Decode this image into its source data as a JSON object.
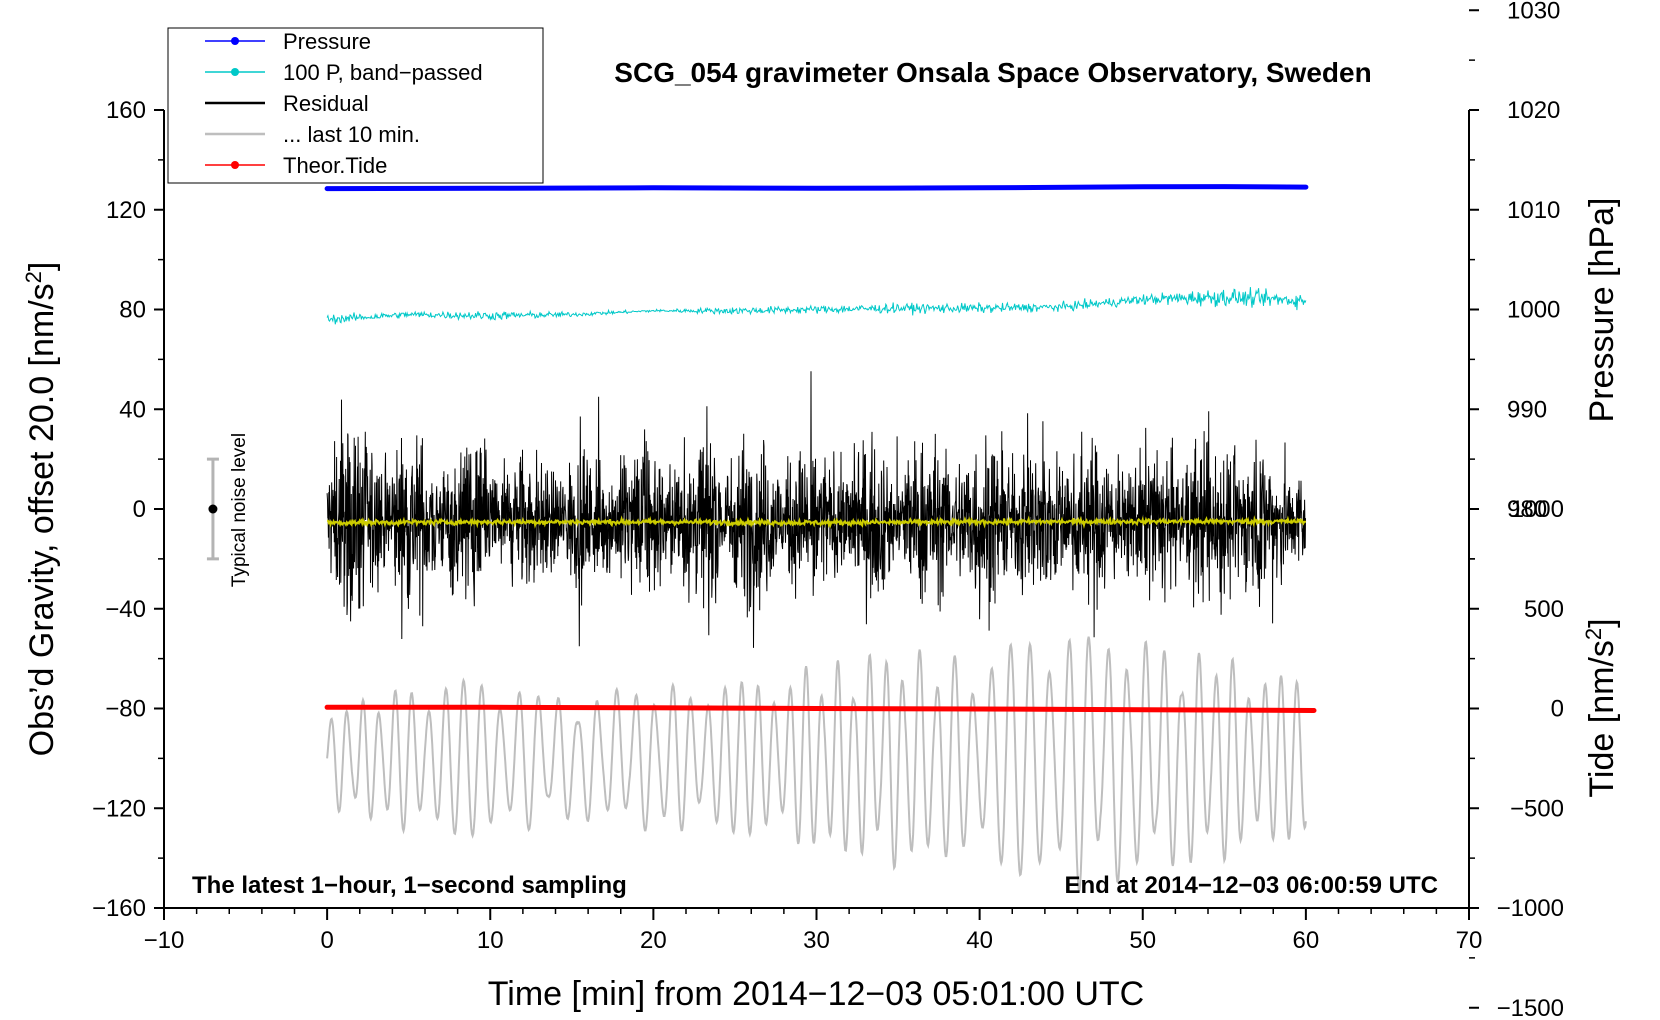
{
  "chart_data": {
    "type": "line",
    "title": "SCG_054 gravimeter Onsala Space Observatory, Sweden",
    "xlabel": "Time [min] from 2014−12−03 05:01:00 UTC",
    "ylabel": "Obs’d Gravity, offset 20.0 [nm/s",
    "ylabel_sup": "2",
    "ylabel_end": "]",
    "xlim": [
      -10,
      70
    ],
    "ylim": [
      -160,
      160
    ],
    "x_ticks": [
      -10,
      0,
      10,
      20,
      30,
      40,
      50,
      60,
      70
    ],
    "x_tick_labels": [
      "−10",
      "0",
      "10",
      "20",
      "30",
      "40",
      "50",
      "60",
      "70"
    ],
    "y_ticks": [
      160,
      120,
      80,
      40,
      0,
      -40,
      -80,
      -120,
      -160
    ],
    "y_tick_labels": [
      "160",
      "120",
      "80",
      "40",
      "0",
      "−40",
      "−80",
      "−120",
      "−160"
    ],
    "pressure_axis": {
      "label": "Pressure [hPa]",
      "ticks": [
        1030,
        1020,
        1010,
        1000,
        990,
        980
      ],
      "tick_labels": [
        "1030",
        "1020",
        "1010",
        "1000",
        "990",
        "980"
      ],
      "gravity_at_1000": 80,
      "nm_per_hPa": 4
    },
    "tide_axis": {
      "label": "Tide [nm/s",
      "label_sup": "2",
      "label_end": "]",
      "ticks": [
        1000,
        500,
        0,
        -500,
        -1000,
        -1500
      ],
      "tick_labels": [
        "1000",
        "500",
        "0",
        "−500",
        "−1000",
        "−1500"
      ],
      "gravity_at_0": -80,
      "tide_per_nm": 12.5
    },
    "corner_left": "The latest 1−hour, 1−second sampling",
    "corner_right": "End at 2014−12−03 06:00:59 UTC",
    "noise_bar": {
      "label": "Typical noise level",
      "x": -7,
      "center": 0,
      "half_range": 20
    },
    "legend": [
      {
        "label": "Pressure",
        "color": "#0000ff",
        "marker": true
      },
      {
        "label": "100 P, band−passed",
        "color": "#00c8c8",
        "marker": true
      },
      {
        "label": "Residual",
        "color": "#000000",
        "marker": false
      },
      {
        "label": "... last 10 min.",
        "color": "#bebebe",
        "marker": false
      },
      {
        "label": "Theor.Tide",
        "color": "#ff0000",
        "marker": true
      }
    ],
    "series": [
      {
        "name": "Pressure",
        "color": "#0000ff",
        "x": [
          0,
          10,
          20,
          30,
          40,
          50,
          55,
          60
        ],
        "y": [
          128.5,
          128.6,
          128.8,
          128.6,
          128.8,
          129.2,
          129.3,
          129.1
        ]
      },
      {
        "name": "100 P, band-passed",
        "color": "#00c8c8",
        "x": [
          0,
          5,
          10,
          15,
          20,
          25,
          30,
          35,
          40,
          45,
          50,
          55,
          60
        ],
        "y": [
          76,
          78,
          77.5,
          78,
          79.5,
          79.5,
          80,
          80.5,
          80.5,
          81,
          84,
          85,
          83.5
        ],
        "noise": [
          1.5,
          1.0,
          1.5,
          0.8,
          0.4,
          1.2,
          1.3,
          1.6,
          1.6,
          1.4,
          1.7,
          3.0,
          2.4
        ]
      },
      {
        "name": "Residual",
        "color": "#000000",
        "x": [
          0,
          5,
          10,
          15,
          20,
          25,
          30,
          35,
          40,
          45,
          50,
          55,
          60
        ],
        "y": [
          -5,
          -5,
          -5,
          -5,
          -5,
          -5,
          -5,
          -5,
          -5,
          -5,
          -5,
          -5,
          -5
        ],
        "envelope": [
          45,
          42,
          38,
          32,
          38,
          42,
          35,
          38,
          42,
          38,
          35,
          44,
          32
        ]
      },
      {
        "name": "Residual smoothed",
        "color": "#cccc00",
        "x": [
          0,
          10,
          20,
          30,
          40,
          50,
          60
        ],
        "y": [
          -5.5,
          -5.2,
          -5.2,
          -5.5,
          -5.2,
          -5.0,
          -5.0
        ]
      },
      {
        "name": "... last 10 min.",
        "color": "#bebebe",
        "x": [
          0,
          5,
          10,
          15,
          20,
          25,
          30,
          35,
          40,
          45,
          50,
          55,
          60
        ],
        "y": [
          -100,
          -100,
          -100,
          -100,
          -100,
          -100,
          -100,
          -100,
          -100,
          -100,
          -100,
          -100,
          -100
        ],
        "envelope": [
          20,
          30,
          32,
          25,
          30,
          30,
          38,
          45,
          40,
          55,
          48,
          42,
          30
        ]
      },
      {
        "name": "Theor.Tide",
        "color": "#ff0000",
        "x": [
          0,
          10,
          20,
          30,
          40,
          50,
          60.5
        ],
        "y": [
          -79.5,
          -79.5,
          -79.7,
          -80.0,
          -80.2,
          -80.5,
          -80.8
        ]
      }
    ]
  }
}
